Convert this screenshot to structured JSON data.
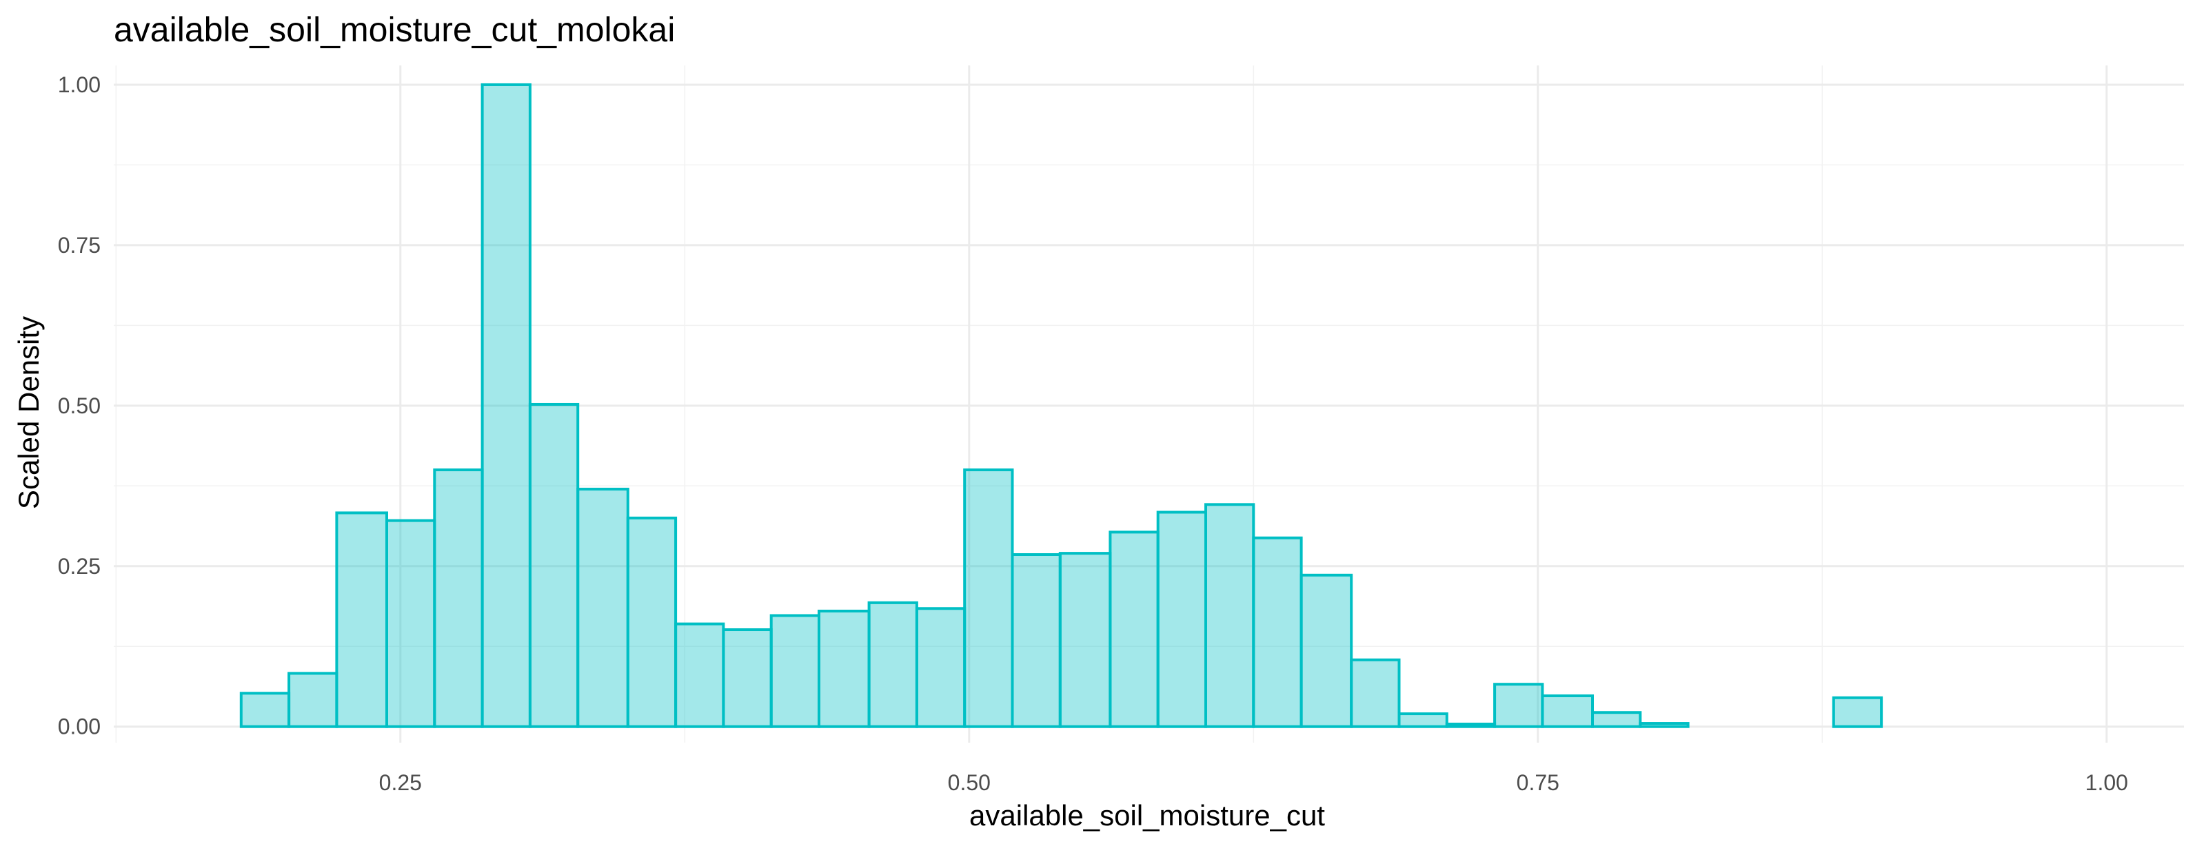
{
  "chart_data": {
    "type": "bar",
    "title": "available_soil_moisture_cut_molokai",
    "xlabel": "available_soil_moisture_cut",
    "ylabel": "Scaled Density",
    "xlim": [
      0.124,
      1.034
    ],
    "ylim": [
      -0.025,
      1.03
    ],
    "xticks": [
      0.25,
      0.5,
      0.75,
      1.0
    ],
    "xtick_labels": [
      "0.25",
      "0.50",
      "0.75",
      "1.00"
    ],
    "yticks": [
      0,
      0.25,
      0.5,
      0.75,
      1.0
    ],
    "ytick_labels": [
      "0.00",
      "0.25",
      "0.50",
      "0.75",
      "1.00"
    ],
    "grid": true,
    "legend": "none",
    "fill_color": "#00BFC4",
    "fill_opacity": 0.36,
    "edge_color": "#00BFC4",
    "bin_width": 0.0212,
    "bins": [
      {
        "x0": 0.18,
        "x1": 0.201,
        "value": 0.052
      },
      {
        "x0": 0.201,
        "x1": 0.222,
        "value": 0.083
      },
      {
        "x0": 0.222,
        "x1": 0.244,
        "value": 0.333
      },
      {
        "x0": 0.244,
        "x1": 0.265,
        "value": 0.321
      },
      {
        "x0": 0.265,
        "x1": 0.286,
        "value": 0.4
      },
      {
        "x0": 0.286,
        "x1": 0.307,
        "value": 1.0
      },
      {
        "x0": 0.307,
        "x1": 0.328,
        "value": 0.502
      },
      {
        "x0": 0.328,
        "x1": 0.35,
        "value": 0.37
      },
      {
        "x0": 0.35,
        "x1": 0.371,
        "value": 0.325
      },
      {
        "x0": 0.371,
        "x1": 0.392,
        "value": 0.16
      },
      {
        "x0": 0.392,
        "x1": 0.413,
        "value": 0.151
      },
      {
        "x0": 0.413,
        "x1": 0.434,
        "value": 0.173
      },
      {
        "x0": 0.434,
        "x1": 0.456,
        "value": 0.18
      },
      {
        "x0": 0.456,
        "x1": 0.477,
        "value": 0.193
      },
      {
        "x0": 0.477,
        "x1": 0.498,
        "value": 0.184
      },
      {
        "x0": 0.498,
        "x1": 0.519,
        "value": 0.4
      },
      {
        "x0": 0.519,
        "x1": 0.54,
        "value": 0.268
      },
      {
        "x0": 0.54,
        "x1": 0.562,
        "value": 0.27
      },
      {
        "x0": 0.562,
        "x1": 0.583,
        "value": 0.303
      },
      {
        "x0": 0.583,
        "x1": 0.604,
        "value": 0.334
      },
      {
        "x0": 0.604,
        "x1": 0.625,
        "value": 0.346
      },
      {
        "x0": 0.625,
        "x1": 0.646,
        "value": 0.294
      },
      {
        "x0": 0.646,
        "x1": 0.668,
        "value": 0.236
      },
      {
        "x0": 0.668,
        "x1": 0.689,
        "value": 0.104
      },
      {
        "x0": 0.689,
        "x1": 0.71,
        "value": 0.02
      },
      {
        "x0": 0.71,
        "x1": 0.731,
        "value": 0.004
      },
      {
        "x0": 0.731,
        "x1": 0.752,
        "value": 0.066
      },
      {
        "x0": 0.752,
        "x1": 0.774,
        "value": 0.048
      },
      {
        "x0": 0.774,
        "x1": 0.795,
        "value": 0.022
      },
      {
        "x0": 0.795,
        "x1": 0.816,
        "value": 0.005
      },
      {
        "x0": 0.816,
        "x1": 0.837,
        "value": 0.0
      },
      {
        "x0": 0.837,
        "x1": 0.858,
        "value": 0.0
      },
      {
        "x0": 0.858,
        "x1": 0.88,
        "value": 0.0
      },
      {
        "x0": 0.88,
        "x1": 0.901,
        "value": 0.045
      },
      {
        "x0": 0.901,
        "x1": 0.922,
        "value": 0.0
      },
      {
        "x0": 0.922,
        "x1": 0.943,
        "value": 0.0
      },
      {
        "x0": 0.943,
        "x1": 0.964,
        "value": 0.0
      },
      {
        "x0": 0.964,
        "x1": 0.986,
        "value": 0.0
      }
    ]
  }
}
